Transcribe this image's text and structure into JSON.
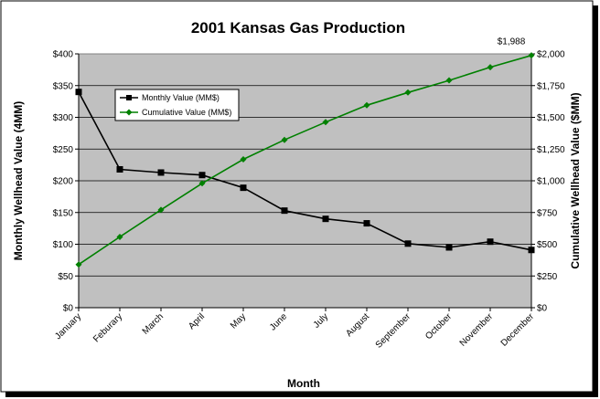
{
  "chart_data": {
    "type": "line",
    "title": "2001 Kansas Gas Production",
    "xlabel": "Month",
    "ylabel_left": "Monthly Wellhead Value (4MM)",
    "ylabel_right": "Cumulative Wellhead Value ($MM)",
    "categories": [
      "January",
      "Feburary",
      "March",
      "April",
      "May",
      "June",
      "July",
      "August",
      "September",
      "October",
      "November",
      "December"
    ],
    "ylim_left": [
      0,
      400
    ],
    "ylim_right": [
      0,
      2000
    ],
    "yticks_left": [
      "$0",
      "$50",
      "$100",
      "$150",
      "$200",
      "$250",
      "$300",
      "$350",
      "$400"
    ],
    "yticks_right": [
      "$0",
      "$250",
      "$500",
      "$750",
      "$1,000",
      "$1,250",
      "$1,500",
      "$1,750",
      "$2,000"
    ],
    "grid": true,
    "legend_position": "upper-left",
    "series": [
      {
        "name": "Monthly Value (MM$)",
        "axis": "left",
        "color": "#000000",
        "marker": "square",
        "values": [
          340,
          218,
          213,
          209,
          189,
          153,
          140,
          133,
          101,
          95,
          104,
          91
        ]
      },
      {
        "name": "Cumulative Value (MM$)",
        "axis": "right",
        "color": "#008000",
        "marker": "diamond",
        "values": [
          340,
          558,
          771,
          980,
          1169,
          1322,
          1462,
          1595,
          1696,
          1791,
          1895,
          1988
        ]
      }
    ],
    "annotations": [
      {
        "text": "$1,988",
        "series": 1,
        "point": 11
      }
    ]
  },
  "colors": {
    "plot_background": "#c0c0c0",
    "gridline": "#000000",
    "shadow": "#000000"
  }
}
